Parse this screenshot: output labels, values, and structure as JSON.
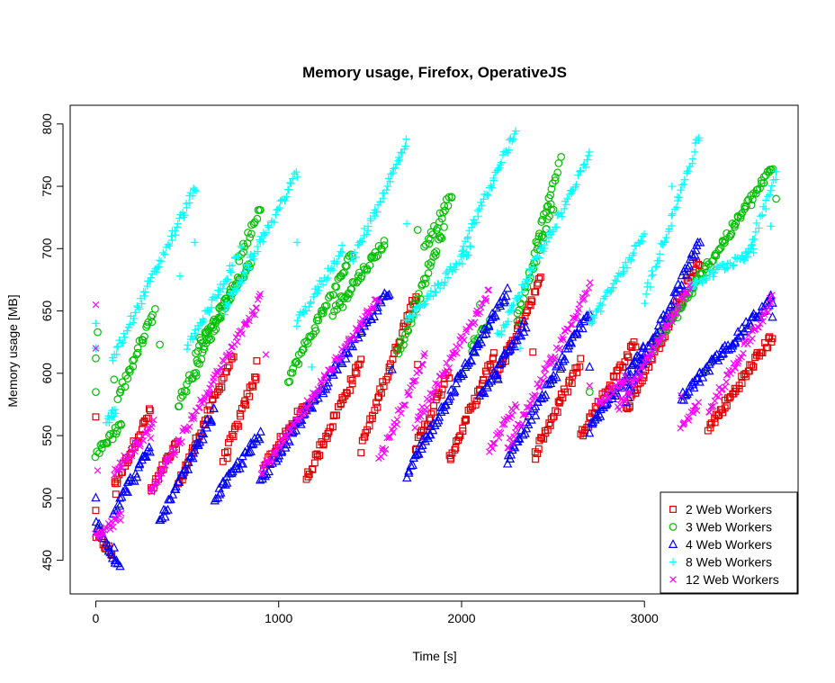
{
  "chart_data": {
    "type": "scatter",
    "title": "Memory usage, Firefox, OperativeJS",
    "xlabel": "Time [s]",
    "ylabel": "Memory usage [MB]",
    "xlim": [
      -140,
      3840
    ],
    "ylim": [
      423,
      815
    ],
    "x_ticks": [
      0,
      1000,
      2000,
      3000
    ],
    "y_ticks": [
      450,
      500,
      550,
      600,
      650,
      700,
      750,
      800
    ],
    "grid": false,
    "legend_position": "bottom-right",
    "series": [
      {
        "name": "2 Web Workers",
        "color": "#DF0000",
        "marker": "square",
        "runs": [
          {
            "x": [
              0,
              90
            ],
            "y": [
              470,
              455
            ]
          },
          {
            "x": [
              100,
              300
            ],
            "y": [
              510,
              570
            ]
          },
          {
            "x": [
              300,
              450
            ],
            "y": [
              505,
              545
            ]
          },
          {
            "x": [
              450,
              750
            ],
            "y": [
              510,
              615
            ]
          },
          {
            "x": [
              700,
              880
            ],
            "y": [
              530,
              600
            ]
          },
          {
            "x": [
              920,
              1150
            ],
            "y": [
              525,
              575
            ]
          },
          {
            "x": [
              1150,
              1450
            ],
            "y": [
              515,
              610
            ]
          },
          {
            "x": [
              1450,
              1750
            ],
            "y": [
              540,
              665
            ]
          },
          {
            "x": [
              1750,
              1930
            ],
            "y": [
              540,
              600
            ]
          },
          {
            "x": [
              1930,
              2180
            ],
            "y": [
              530,
              615
            ]
          },
          {
            "x": [
              2180,
              2430
            ],
            "y": [
              595,
              675
            ]
          },
          {
            "x": [
              2400,
              2650
            ],
            "y": [
              535,
              610
            ]
          },
          {
            "x": [
              2650,
              2950
            ],
            "y": [
              550,
              625
            ]
          },
          {
            "x": [
              2900,
              3300
            ],
            "y": [
              570,
              690
            ]
          },
          {
            "x": [
              3350,
              3700
            ],
            "y": [
              555,
              630
            ]
          }
        ],
        "outliers": [
          [
            0,
            565
          ],
          [
            0,
            490
          ],
          [
            110,
            503
          ],
          [
            880,
            610
          ],
          [
            1170,
            575
          ],
          [
            1760,
            607
          ],
          [
            2390,
            617
          ],
          [
            2700,
            565
          ],
          [
            3200,
            655
          ]
        ]
      },
      {
        "name": "3 Web Workers",
        "color": "#00BF00",
        "marker": "circle",
        "runs": [
          {
            "x": [
              0,
              140
            ],
            "y": [
              535,
              560
            ]
          },
          {
            "x": [
              120,
              320
            ],
            "y": [
              580,
              650
            ]
          },
          {
            "x": [
              450,
              740
            ],
            "y": [
              575,
              665
            ]
          },
          {
            "x": [
              550,
              850
            ],
            "y": [
              620,
              690
            ]
          },
          {
            "x": [
              780,
              900
            ],
            "y": [
              690,
              735
            ]
          },
          {
            "x": [
              1050,
              1400
            ],
            "y": [
              595,
              695
            ]
          },
          {
            "x": [
              1300,
              1580
            ],
            "y": [
              650,
              705
            ]
          },
          {
            "x": [
              1650,
              1900
            ],
            "y": [
              615,
              715
            ]
          },
          {
            "x": [
              1800,
              1950
            ],
            "y": [
              700,
              745
            ]
          },
          {
            "x": [
              2050,
              2150
            ],
            "y": [
              620,
              640
            ]
          },
          {
            "x": [
              2300,
              2500
            ],
            "y": [
              645,
              735
            ]
          },
          {
            "x": [
              2400,
              2540
            ],
            "y": [
              700,
              770
            ]
          },
          {
            "x": [
              3050,
              3700
            ],
            "y": [
              620,
              765
            ]
          }
        ],
        "outliers": [
          [
            0,
            612
          ],
          [
            0,
            585
          ],
          [
            10,
            633
          ],
          [
            100,
            595
          ],
          [
            350,
            623
          ],
          [
            550,
            598
          ],
          [
            1350,
            653
          ],
          [
            1760,
            715
          ],
          [
            2100,
            655
          ],
          [
            3720,
            740
          ],
          [
            2700,
            585
          ]
        ]
      },
      {
        "name": "4 Web Workers",
        "color": "#0000FF",
        "marker": "triangle",
        "runs": [
          {
            "x": [
              0,
              130
            ],
            "y": [
              480,
              445
            ]
          },
          {
            "x": [
              100,
              300
            ],
            "y": [
              490,
              540
            ]
          },
          {
            "x": [
              350,
              650
            ],
            "y": [
              480,
              570
            ]
          },
          {
            "x": [
              650,
              900
            ],
            "y": [
              500,
              550
            ]
          },
          {
            "x": [
              900,
              1600
            ],
            "y": [
              515,
              665
            ]
          },
          {
            "x": [
              1700,
              2250
            ],
            "y": [
              520,
              665
            ]
          },
          {
            "x": [
              2100,
              2350
            ],
            "y": [
              580,
              640
            ]
          },
          {
            "x": [
              2250,
              2700
            ],
            "y": [
              530,
              650
            ]
          },
          {
            "x": [
              2700,
              3000
            ],
            "y": [
              555,
              620
            ]
          },
          {
            "x": [
              2900,
              3300
            ],
            "y": [
              580,
              705
            ]
          },
          {
            "x": [
              3200,
              3700
            ],
            "y": [
              580,
              660
            ]
          }
        ],
        "outliers": [
          [
            0,
            500
          ],
          [
            100,
            460
          ],
          [
            1620,
            603
          ],
          [
            2200,
            595
          ],
          [
            2700,
            605
          ],
          [
            3300,
            600
          ],
          [
            3700,
            645
          ]
        ]
      },
      {
        "name": "8 Web Workers",
        "color": "#00FFFF",
        "marker": "plus",
        "runs": [
          {
            "x": [
              60,
              110
            ],
            "y": [
              560,
              570
            ]
          },
          {
            "x": [
              90,
              550
            ],
            "y": [
              610,
              750
            ]
          },
          {
            "x": [
              500,
              800
            ],
            "y": [
              620,
              700
            ]
          },
          {
            "x": [
              700,
              1100
            ],
            "y": [
              650,
              760
            ]
          },
          {
            "x": [
              1100,
              1350
            ],
            "y": [
              640,
              700
            ]
          },
          {
            "x": [
              1400,
              1700
            ],
            "y": [
              690,
              785
            ]
          },
          {
            "x": [
              1700,
              2050
            ],
            "y": [
              640,
              700
            ]
          },
          {
            "x": [
              2000,
              2300
            ],
            "y": [
              700,
              795
            ]
          },
          {
            "x": [
              2200,
              2700
            ],
            "y": [
              630,
              775
            ]
          },
          {
            "x": [
              2700,
              3000
            ],
            "y": [
              640,
              710
            ]
          },
          {
            "x": [
              3000,
              3300
            ],
            "y": [
              660,
              790
            ]
          },
          {
            "x": [
              3250,
              3600
            ],
            "y": [
              670,
              700
            ]
          },
          {
            "x": [
              3550,
              3720
            ],
            "y": [
              690,
              760
            ]
          }
        ],
        "outliers": [
          [
            0,
            640
          ],
          [
            0,
            620
          ],
          [
            540,
            705
          ],
          [
            460,
            678
          ],
          [
            1100,
            705
          ],
          [
            1180,
            605
          ],
          [
            1700,
            720
          ],
          [
            2320,
            620
          ],
          [
            2700,
            650
          ],
          [
            3150,
            750
          ],
          [
            3690,
            718
          ]
        ]
      },
      {
        "name": "12 Web Workers",
        "color": "#FF00FF",
        "marker": "cross",
        "runs": [
          {
            "x": [
              0,
              140
            ],
            "y": [
              470,
              485
            ]
          },
          {
            "x": [
              100,
              320
            ],
            "y": [
              520,
              560
            ]
          },
          {
            "x": [
              300,
              900
            ],
            "y": [
              505,
              660
            ]
          },
          {
            "x": [
              900,
              1550
            ],
            "y": [
              520,
              660
            ]
          },
          {
            "x": [
              1550,
              1800
            ],
            "y": [
              530,
              615
            ]
          },
          {
            "x": [
              1750,
              2150
            ],
            "y": [
              560,
              665
            ]
          },
          {
            "x": [
              2150,
              2300
            ],
            "y": [
              540,
              575
            ]
          },
          {
            "x": [
              2250,
              2700
            ],
            "y": [
              540,
              670
            ]
          },
          {
            "x": [
              2750,
              2900
            ],
            "y": [
              575,
              595
            ]
          },
          {
            "x": [
              2850,
              3250
            ],
            "y": [
              570,
              670
            ]
          },
          {
            "x": [
              3200,
              3300
            ],
            "y": [
              555,
              575
            ]
          },
          {
            "x": [
              3350,
              3700
            ],
            "y": [
              570,
              660
            ]
          }
        ],
        "outliers": [
          [
            0,
            655
          ],
          [
            0,
            620
          ],
          [
            10,
            522
          ],
          [
            300,
            548
          ],
          [
            930,
            615
          ],
          [
            2700,
            590
          ],
          [
            3200,
            582
          ]
        ]
      }
    ]
  }
}
